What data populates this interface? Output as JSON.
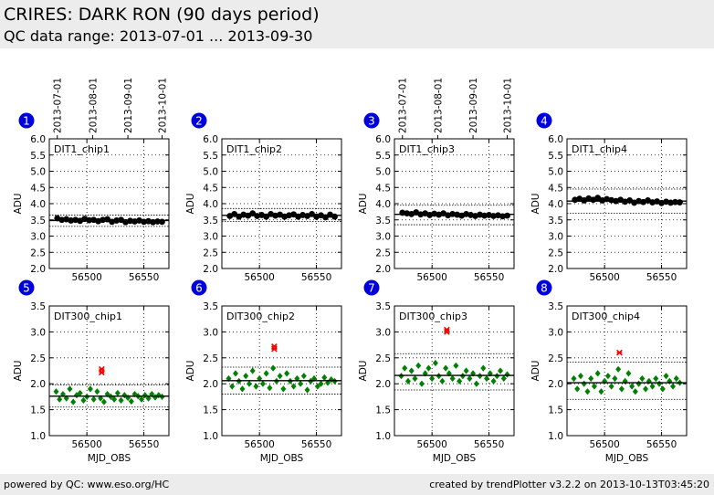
{
  "header": {
    "title": "CRIRES: DARK RON (90 days period)",
    "subtitle": "QC data range: 2013-07-01 ... 2013-09-30"
  },
  "footer": {
    "left": "powered by QC: www.eso.org/HC",
    "right": "created by trendPlotter v3.2.2 on 2013-10-13T03:45:20"
  },
  "colors": {
    "header_bg": "#ececec",
    "badge": "#0000dd",
    "dark_points": "#000000",
    "long_points": "#008000",
    "outlier": "#ff0000"
  },
  "date_ticks": [
    "2013-07-01",
    "2013-08-01",
    "2013-09-01",
    "2013-10-01"
  ],
  "chart_data": [
    {
      "id": 1,
      "type": "scatter",
      "label": "DIT1_chip1",
      "ylabel": "ADU",
      "xlabel": "",
      "ylim": [
        2.0,
        6.0
      ],
      "yticks": [
        "2.0",
        "2.5",
        "3.0",
        "3.5",
        "4.0",
        "4.5",
        "5.0",
        "5.5",
        "6.0"
      ],
      "xlim": [
        56467,
        56572
      ],
      "xticks": [
        56500,
        56550
      ],
      "grid": true,
      "series": [
        {
          "color": "#000000",
          "marker": "circle",
          "x": [
            56474,
            56478,
            56482,
            56486,
            56490,
            56494,
            56498,
            56502,
            56506,
            56510,
            56514,
            56518,
            56522,
            56526,
            56530,
            56534,
            56538,
            56542,
            56546,
            56550,
            56554,
            56558,
            56562,
            56566
          ],
          "y": [
            3.55,
            3.5,
            3.52,
            3.48,
            3.5,
            3.47,
            3.53,
            3.49,
            3.5,
            3.46,
            3.5,
            3.52,
            3.44,
            3.48,
            3.5,
            3.43,
            3.47,
            3.45,
            3.48,
            3.44,
            3.46,
            3.43,
            3.45,
            3.44
          ]
        }
      ],
      "mean": 3.48,
      "band": [
        3.3,
        3.65
      ]
    },
    {
      "id": 2,
      "type": "scatter",
      "label": "DIT1_chip2",
      "ylabel": "ADU",
      "xlabel": "",
      "ylim": [
        2.0,
        6.0
      ],
      "yticks": [
        "2.0",
        "2.5",
        "3.0",
        "3.5",
        "4.0",
        "4.5",
        "5.0",
        "5.5",
        "6.0"
      ],
      "xlim": [
        56467,
        56572
      ],
      "xticks": [
        56500,
        56550
      ],
      "grid": true,
      "series": [
        {
          "color": "#000000",
          "marker": "circle",
          "x": [
            56474,
            56478,
            56482,
            56486,
            56490,
            56494,
            56498,
            56502,
            56506,
            56510,
            56514,
            56518,
            56522,
            56526,
            56530,
            56534,
            56538,
            56542,
            56546,
            56550,
            56554,
            56558,
            56562,
            56566
          ],
          "y": [
            3.62,
            3.68,
            3.6,
            3.66,
            3.63,
            3.7,
            3.62,
            3.65,
            3.6,
            3.68,
            3.63,
            3.66,
            3.6,
            3.64,
            3.67,
            3.6,
            3.65,
            3.62,
            3.68,
            3.6,
            3.64,
            3.58,
            3.66,
            3.6
          ]
        }
      ],
      "mean": 3.64,
      "band": [
        3.45,
        3.85
      ]
    },
    {
      "id": 3,
      "type": "scatter",
      "label": "DIT1_chip3",
      "ylabel": "ADU",
      "xlabel": "",
      "ylim": [
        2.0,
        6.0
      ],
      "yticks": [
        "2.0",
        "2.5",
        "3.0",
        "3.5",
        "4.0",
        "4.5",
        "5.0",
        "5.5",
        "6.0"
      ],
      "xlim": [
        56467,
        56572
      ],
      "xticks": [
        56500,
        56550
      ],
      "grid": true,
      "series": [
        {
          "color": "#000000",
          "marker": "circle",
          "x": [
            56474,
            56478,
            56482,
            56486,
            56490,
            56494,
            56498,
            56502,
            56506,
            56510,
            56514,
            56518,
            56522,
            56526,
            56530,
            56534,
            56538,
            56542,
            56546,
            56550,
            56554,
            56558,
            56562,
            56566
          ],
          "y": [
            3.72,
            3.7,
            3.68,
            3.73,
            3.67,
            3.7,
            3.65,
            3.69,
            3.66,
            3.7,
            3.64,
            3.68,
            3.66,
            3.63,
            3.68,
            3.65,
            3.62,
            3.66,
            3.63,
            3.65,
            3.62,
            3.64,
            3.61,
            3.63
          ]
        }
      ],
      "mean": 3.67,
      "band": [
        3.35,
        3.95
      ]
    },
    {
      "id": 4,
      "type": "scatter",
      "label": "DIT1_chip4",
      "ylabel": "ADU",
      "xlabel": "",
      "ylim": [
        2.0,
        6.0
      ],
      "yticks": [
        "2.0",
        "2.5",
        "3.0",
        "3.5",
        "4.0",
        "4.5",
        "5.0",
        "5.5",
        "6.0"
      ],
      "xlim": [
        56467,
        56572
      ],
      "xticks": [
        56500,
        56550
      ],
      "grid": true,
      "series": [
        {
          "color": "#000000",
          "marker": "circle",
          "x": [
            56474,
            56478,
            56482,
            56486,
            56490,
            56494,
            56498,
            56502,
            56506,
            56510,
            56514,
            56518,
            56522,
            56526,
            56530,
            56534,
            56538,
            56542,
            56546,
            56550,
            56554,
            56558,
            56562,
            56566
          ],
          "y": [
            4.12,
            4.15,
            4.1,
            4.16,
            4.12,
            4.18,
            4.1,
            4.14,
            4.11,
            4.08,
            4.12,
            4.06,
            4.1,
            4.03,
            4.08,
            4.05,
            4.1,
            4.04,
            4.07,
            4.02,
            4.06,
            4.03,
            4.05,
            4.04
          ]
        }
      ],
      "mean": 4.08,
      "band": [
        3.7,
        4.45
      ]
    },
    {
      "id": 5,
      "type": "scatter",
      "label": "DIT300_chip1",
      "ylabel": "ADU",
      "xlabel": "MJD_OBS",
      "ylim": [
        1.0,
        3.5
      ],
      "yticks": [
        "1.0",
        "1.5",
        "2.0",
        "2.5",
        "3.0",
        "3.5"
      ],
      "xlim": [
        56467,
        56572
      ],
      "xticks": [
        56500,
        56550
      ],
      "grid": true,
      "series": [
        {
          "color": "#008000",
          "marker": "diamond",
          "x": [
            56473,
            56476,
            56479,
            56482,
            56485,
            56488,
            56491,
            56494,
            56497,
            56500,
            56503,
            56506,
            56509,
            56512,
            56515,
            56518,
            56521,
            56524,
            56527,
            56530,
            56533,
            56536,
            56539,
            56542,
            56545,
            56548,
            56551,
            56554,
            56557,
            56560,
            56563,
            56566
          ],
          "y": [
            1.85,
            1.7,
            1.8,
            1.72,
            1.9,
            1.65,
            1.78,
            1.82,
            1.68,
            1.75,
            1.9,
            1.7,
            1.85,
            1.72,
            1.65,
            1.8,
            1.75,
            1.7,
            1.82,
            1.68,
            1.78,
            1.73,
            1.66,
            1.8,
            1.76,
            1.7,
            1.78,
            1.72,
            1.8,
            1.74,
            1.78,
            1.75
          ]
        },
        {
          "color": "#ff0000",
          "marker": "x",
          "x": [
            56513,
            56513
          ],
          "y": [
            2.22,
            2.28
          ]
        }
      ],
      "mean": 1.76,
      "band": [
        1.55,
        1.98
      ]
    },
    {
      "id": 6,
      "type": "scatter",
      "label": "DIT300_chip2",
      "ylabel": "ADU",
      "xlabel": "MJD_OBS",
      "ylim": [
        1.0,
        3.5
      ],
      "yticks": [
        "1.0",
        "1.5",
        "2.0",
        "2.5",
        "3.0",
        "3.5"
      ],
      "xlim": [
        56467,
        56572
      ],
      "xticks": [
        56500,
        56550
      ],
      "grid": true,
      "series": [
        {
          "color": "#008000",
          "marker": "diamond",
          "x": [
            56473,
            56476,
            56479,
            56482,
            56485,
            56488,
            56491,
            56494,
            56497,
            56500,
            56503,
            56506,
            56509,
            56512,
            56515,
            56518,
            56521,
            56524,
            56527,
            56530,
            56533,
            56536,
            56539,
            56542,
            56545,
            56548,
            56551,
            56554,
            56557,
            56560,
            56563,
            56566
          ],
          "y": [
            2.1,
            1.95,
            2.2,
            2.05,
            1.9,
            2.15,
            2.0,
            2.25,
            1.95,
            2.1,
            2.0,
            2.2,
            1.92,
            2.3,
            2.05,
            2.15,
            1.9,
            2.2,
            2.05,
            1.95,
            2.1,
            2.0,
            2.15,
            1.88,
            2.05,
            2.1,
            1.95,
            2.0,
            2.12,
            2.02,
            2.08,
            2.05
          ]
        },
        {
          "color": "#ff0000",
          "marker": "x",
          "x": [
            56513,
            56513
          ],
          "y": [
            2.67,
            2.72
          ]
        }
      ],
      "mean": 2.06,
      "band": [
        1.8,
        2.32
      ]
    },
    {
      "id": 7,
      "type": "scatter",
      "label": "DIT300_chip3",
      "ylabel": "ADU",
      "xlabel": "MJD_OBS",
      "ylim": [
        1.0,
        3.5
      ],
      "yticks": [
        "1.0",
        "1.5",
        "2.0",
        "2.5",
        "3.0",
        "3.5"
      ],
      "xlim": [
        56467,
        56572
      ],
      "xticks": [
        56500,
        56550
      ],
      "grid": true,
      "series": [
        {
          "color": "#008000",
          "marker": "diamond",
          "x": [
            56473,
            56476,
            56479,
            56482,
            56485,
            56488,
            56491,
            56494,
            56497,
            56500,
            56503,
            56506,
            56509,
            56512,
            56515,
            56518,
            56521,
            56524,
            56527,
            56530,
            56533,
            56536,
            56539,
            56542,
            56545,
            56548,
            56551,
            56554,
            56557,
            56560,
            56563,
            56566
          ],
          "y": [
            2.15,
            2.3,
            2.05,
            2.25,
            2.1,
            2.35,
            2.0,
            2.2,
            2.3,
            2.1,
            2.4,
            2.15,
            2.05,
            2.3,
            2.2,
            2.1,
            2.35,
            2.05,
            2.15,
            2.25,
            2.1,
            2.2,
            2.0,
            2.15,
            2.3,
            2.1,
            2.2,
            2.05,
            2.15,
            2.25,
            2.1,
            2.18
          ]
        },
        {
          "color": "#ff0000",
          "marker": "x",
          "x": [
            56513,
            56513
          ],
          "y": [
            3.0,
            3.04
          ]
        }
      ],
      "mean": 2.16,
      "band": [
        1.88,
        2.58
      ]
    },
    {
      "id": 8,
      "type": "scatter",
      "label": "DIT300_chip4",
      "ylabel": "ADU",
      "xlabel": "MJD_OBS",
      "ylim": [
        1.0,
        3.5
      ],
      "yticks": [
        "1.0",
        "1.5",
        "2.0",
        "2.5",
        "3.0",
        "3.5"
      ],
      "xlim": [
        56467,
        56572
      ],
      "xticks": [
        56500,
        56550
      ],
      "grid": true,
      "series": [
        {
          "color": "#008000",
          "marker": "diamond",
          "x": [
            56473,
            56476,
            56479,
            56482,
            56485,
            56488,
            56491,
            56494,
            56497,
            56500,
            56503,
            56506,
            56509,
            56512,
            56515,
            56518,
            56521,
            56524,
            56527,
            56530,
            56533,
            56536,
            56539,
            56542,
            56545,
            56548,
            56551,
            56554,
            56557,
            56560,
            56563,
            56566
          ],
          "y": [
            2.1,
            1.9,
            2.15,
            2.0,
            1.85,
            2.1,
            1.95,
            2.2,
            1.85,
            2.05,
            2.15,
            1.95,
            2.1,
            2.28,
            1.9,
            2.05,
            2.2,
            1.95,
            1.85,
            2.0,
            2.1,
            1.9,
            2.05,
            1.95,
            2.1,
            2.0,
            1.9,
            2.15,
            2.05,
            1.95,
            2.1,
            2.02
          ]
        },
        {
          "color": "#ff0000",
          "marker": "x",
          "x": [
            56513
          ],
          "y": [
            2.6
          ]
        }
      ],
      "mean": 2.02,
      "band": [
        1.7,
        2.42
      ]
    }
  ]
}
